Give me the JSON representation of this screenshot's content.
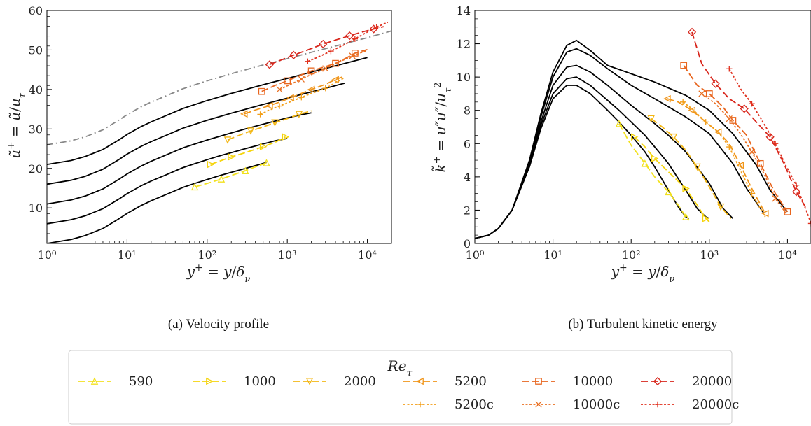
{
  "chart_data": [
    {
      "type": "line",
      "caption": "(a) Velocity profile",
      "xlabel": "y+ = y/δν",
      "ylabel": "ũ+ = ũ/uτ",
      "xscale": "log",
      "xlim": [
        1,
        20000
      ],
      "ylim": [
        1,
        60
      ],
      "xticks": [
        "10⁰",
        "10¹",
        "10²",
        "10³",
        "10⁴"
      ],
      "yticks": [
        "10",
        "20",
        "30",
        "40",
        "50",
        "60"
      ],
      "series": [
        {
          "name": "590 (reference)",
          "color": "#000000",
          "offset": 0,
          "x": [
            1,
            2,
            3,
            5,
            8,
            10,
            15,
            20,
            30,
            50,
            70,
            100,
            150,
            200,
            300,
            400,
            550
          ],
          "y": [
            1,
            2,
            3,
            4.8,
            7.3,
            8.6,
            10.6,
            11.8,
            13.3,
            15.2,
            16.2,
            17.2,
            18.3,
            19.0,
            20.0,
            20.7,
            21.5
          ]
        },
        {
          "name": "1000 (reference)",
          "color": "#000000",
          "offset": 5,
          "x": [
            1,
            2,
            3,
            5,
            8,
            10,
            15,
            20,
            30,
            50,
            70,
            100,
            150,
            200,
            300,
            500,
            700,
            1000
          ],
          "y": [
            6,
            7,
            8,
            9.8,
            12.3,
            13.6,
            15.6,
            16.8,
            18.3,
            20.2,
            21.2,
            22.2,
            23.3,
            24.0,
            25.0,
            26.2,
            27.0,
            27.6
          ]
        },
        {
          "name": "2000 (reference)",
          "color": "#000000",
          "offset": 10,
          "x": [
            1,
            2,
            3,
            5,
            8,
            10,
            15,
            20,
            30,
            50,
            100,
            200,
            300,
            500,
            1000,
            1500,
            2000
          ],
          "y": [
            11,
            12,
            13,
            14.8,
            17.3,
            18.6,
            20.6,
            21.8,
            23.3,
            25.2,
            27.2,
            29.0,
            30.0,
            31.2,
            32.8,
            33.6,
            34.1
          ]
        },
        {
          "name": "5200 (reference)",
          "color": "#000000",
          "offset": 15,
          "x": [
            1,
            2,
            3,
            5,
            8,
            10,
            15,
            20,
            30,
            50,
            100,
            200,
            500,
            1000,
            2000,
            3000,
            5200
          ],
          "y": [
            16,
            17,
            18,
            19.8,
            22.3,
            23.6,
            25.6,
            26.8,
            28.3,
            30.2,
            32.2,
            34.0,
            36.2,
            37.8,
            39.4,
            40.3,
            41.6
          ]
        },
        {
          "name": "10000 (reference)",
          "color": "#000000",
          "offset": 20,
          "x": [
            1,
            2,
            3,
            5,
            8,
            10,
            15,
            20,
            30,
            50,
            100,
            200,
            500,
            1000,
            2000,
            5000,
            10000
          ],
          "y": [
            21,
            22,
            23,
            24.8,
            27.3,
            28.6,
            30.6,
            31.8,
            33.3,
            35.2,
            37.2,
            39.0,
            41.2,
            42.8,
            44.4,
            46.5,
            48.1
          ]
        },
        {
          "name": "20000 (reference)",
          "color": "#888888",
          "offset": 25,
          "x": [
            1,
            2,
            3,
            5,
            8,
            10,
            15,
            20,
            30,
            50,
            100,
            200,
            500,
            1000,
            2000,
            5000,
            10000,
            20000
          ],
          "y": [
            26,
            27,
            28,
            29.8,
            32.3,
            33.6,
            35.6,
            36.8,
            38.3,
            40.2,
            42.2,
            44.0,
            46.2,
            47.8,
            49.4,
            51.5,
            53.1,
            54.8
          ]
        },
        {
          "name": "590",
          "color": "#f2e11e",
          "marker": "triangle-up",
          "x": [
            70,
            100,
            150,
            200,
            300,
            400,
            550
          ],
          "y": [
            15.3,
            16.2,
            17.3,
            18.2,
            19.4,
            20.4,
            21.4
          ]
        },
        {
          "name": "1000",
          "color": "#f5d40c",
          "marker": "triangle-right",
          "x": [
            110,
            150,
            200,
            300,
            500,
            700,
            950
          ],
          "y": [
            21.0,
            22.0,
            22.9,
            24.0,
            25.5,
            26.6,
            28.0
          ]
        },
        {
          "name": "2000",
          "color": "#f3b715",
          "marker": "triangle-down",
          "x": [
            180,
            250,
            350,
            500,
            700,
            1000,
            1400,
            2000
          ],
          "y": [
            27.2,
            28.4,
            29.5,
            30.5,
            31.6,
            32.6,
            33.7,
            34.6
          ]
        },
        {
          "name": "5200",
          "color": "#f0951a",
          "marker": "triangle-left",
          "x": [
            290,
            400,
            600,
            800,
            1100,
            1500,
            2000,
            3000,
            4000,
            5200
          ],
          "y": [
            33.8,
            34.8,
            35.9,
            36.8,
            37.9,
            39.0,
            40.0,
            41.3,
            42.5,
            43.4
          ]
        },
        {
          "name": "5200c",
          "color": "#f29f1a",
          "marker": "plus",
          "dashed": true,
          "x": [
            460,
            600,
            800,
            1100,
            1500,
            2000,
            3000,
            5200
          ],
          "y": [
            33.7,
            34.8,
            35.8,
            36.9,
            38.0,
            39.0,
            40.3,
            43.0
          ]
        },
        {
          "name": "10000",
          "color": "#e8651e",
          "marker": "square",
          "x": [
            480,
            700,
            1000,
            1500,
            2000,
            3000,
            4000,
            5500,
            7000,
            10000
          ],
          "y": [
            39.5,
            41.0,
            42.2,
            43.7,
            44.7,
            45.8,
            46.6,
            48.0,
            49.2,
            50.1
          ]
        },
        {
          "name": "10000c",
          "color": "#ea7022",
          "marker": "x",
          "dashed": true,
          "x": [
            800,
            1100,
            1500,
            2000,
            3000,
            4500,
            6500,
            10000
          ],
          "y": [
            40.0,
            41.3,
            42.6,
            43.8,
            45.3,
            47.0,
            48.5,
            49.9
          ]
        },
        {
          "name": "20000",
          "color": "#d8261c",
          "marker": "diamond",
          "x": [
            600,
            800,
            1200,
            1800,
            2800,
            4000,
            6000,
            8500,
            12000,
            16000
          ],
          "y": [
            46.3,
            47.3,
            48.7,
            50.0,
            51.5,
            52.5,
            53.6,
            54.5,
            55.3,
            55.9
          ]
        },
        {
          "name": "20000c",
          "color": "#e0301e",
          "marker": "plus",
          "dashed": true,
          "x": [
            1800,
            2500,
            3500,
            5000,
            7000,
            9500,
            13000,
            18000
          ],
          "y": [
            47.1,
            48.3,
            49.7,
            51.2,
            52.8,
            54.3,
            55.8,
            57.0
          ]
        }
      ]
    },
    {
      "type": "line",
      "caption": "(b) Turbulent kinetic energy",
      "xlabel": "y+ = y/δν",
      "ylabel": "k̃+ = u″u″/uτ²",
      "xscale": "log",
      "xlim": [
        1,
        20000
      ],
      "ylim": [
        0,
        14
      ],
      "xticks": [
        "10⁰",
        "10¹",
        "10²",
        "10³",
        "10⁴"
      ],
      "yticks": [
        "0",
        "2",
        "4",
        "6",
        "8",
        "10",
        "12",
        "14"
      ],
      "series": [
        {
          "name": "590 (reference)",
          "color": "#000000",
          "x": [
            1,
            1.5,
            2,
            3,
            5,
            7,
            10,
            15,
            20,
            30,
            50,
            70,
            100,
            150,
            200,
            300,
            400,
            500,
            550
          ],
          "y": [
            0.3,
            0.5,
            0.9,
            2.0,
            4.6,
            6.9,
            8.7,
            9.5,
            9.5,
            9.0,
            8.0,
            7.3,
            6.5,
            5.5,
            4.6,
            3.2,
            2.2,
            1.6,
            1.5
          ]
        },
        {
          "name": "1000 (reference)",
          "color": "#000000",
          "x": [
            1,
            1.5,
            2,
            3,
            5,
            7,
            10,
            15,
            20,
            30,
            50,
            70,
            100,
            150,
            200,
            300,
            500,
            700,
            900,
            1000
          ],
          "y": [
            0.3,
            0.5,
            0.9,
            2.0,
            4.7,
            7.1,
            9.0,
            9.9,
            10.0,
            9.5,
            8.6,
            8.0,
            7.3,
            6.5,
            5.8,
            4.8,
            3.2,
            2.1,
            1.6,
            1.5
          ]
        },
        {
          "name": "2000 (reference)",
          "color": "#000000",
          "x": [
            1,
            1.5,
            2,
            3,
            5,
            7,
            10,
            15,
            20,
            30,
            50,
            100,
            200,
            300,
            500,
            1000,
            1500,
            2000
          ],
          "y": [
            0.3,
            0.5,
            0.9,
            2.0,
            4.8,
            7.3,
            9.5,
            10.6,
            10.7,
            10.3,
            9.5,
            8.3,
            7.2,
            6.5,
            5.5,
            3.6,
            2.1,
            1.5
          ]
        },
        {
          "name": "5200 (reference)",
          "color": "#000000",
          "x": [
            1,
            1.5,
            2,
            3,
            5,
            7,
            10,
            15,
            20,
            30,
            50,
            100,
            200,
            500,
            1000,
            2000,
            3000,
            5000
          ],
          "y": [
            0.3,
            0.5,
            0.9,
            2.0,
            4.9,
            7.6,
            10.0,
            11.5,
            11.7,
            11.3,
            10.5,
            9.5,
            8.7,
            7.6,
            6.6,
            4.8,
            3.3,
            1.8
          ]
        },
        {
          "name": "10000 (reference)",
          "color": "#000000",
          "x": [
            1,
            1.5,
            2,
            3,
            5,
            7,
            10,
            15,
            20,
            30,
            50,
            100,
            200,
            500,
            1000,
            2000,
            4000,
            6000,
            10000
          ],
          "y": [
            0.3,
            0.5,
            0.9,
            2.0,
            5.0,
            7.8,
            10.3,
            11.9,
            12.2,
            11.6,
            10.7,
            10.2,
            9.7,
            8.9,
            8.0,
            6.6,
            4.7,
            3.2,
            1.9
          ]
        },
        {
          "name": "590",
          "color": "#f2e11e",
          "marker": "triangle-up",
          "x": [
            70,
            100,
            150,
            200,
            300,
            400,
            500,
            550
          ],
          "y": [
            7.2,
            5.9,
            4.8,
            4.0,
            3.1,
            2.3,
            1.6,
            1.4
          ]
        },
        {
          "name": "1000",
          "color": "#f5d40c",
          "marker": "triangle-right",
          "x": [
            110,
            150,
            200,
            300,
            500,
            700,
            900,
            1000
          ],
          "y": [
            6.4,
            5.8,
            5.1,
            4.3,
            3.3,
            2.3,
            1.5,
            1.3
          ]
        },
        {
          "name": "2000",
          "color": "#f3b715",
          "marker": "triangle-down",
          "x": [
            180,
            250,
            350,
            500,
            700,
            1000,
            1400,
            1900
          ],
          "y": [
            7.5,
            7.0,
            6.4,
            5.6,
            4.6,
            3.4,
            2.2,
            1.5
          ]
        },
        {
          "name": "5200",
          "color": "#f0951a",
          "marker": "triangle-left",
          "x": [
            290,
            400,
            600,
            900,
            1300,
            1800,
            2500,
            3500,
            5200
          ],
          "y": [
            8.7,
            8.5,
            8.0,
            7.3,
            6.7,
            6.0,
            4.7,
            3.3,
            1.8
          ]
        },
        {
          "name": "5200c",
          "color": "#f29f1a",
          "marker": "plus",
          "dashed": true,
          "x": [
            460,
            600,
            900,
            1300,
            1800,
            2500,
            3500,
            5200
          ],
          "y": [
            8.5,
            8.1,
            7.3,
            6.7,
            5.8,
            4.4,
            3.0,
            1.6
          ]
        },
        {
          "name": "10000",
          "color": "#e8651e",
          "marker": "square",
          "x": [
            470,
            700,
            1000,
            1500,
            2000,
            3000,
            4500,
            7000,
            10000
          ],
          "y": [
            10.7,
            9.5,
            9.0,
            8.2,
            7.4,
            6.5,
            4.8,
            3.0,
            1.9
          ]
        },
        {
          "name": "10000c",
          "color": "#ea7022",
          "marker": "x",
          "dashed": true,
          "x": [
            800,
            1200,
            1800,
            2500,
            3500,
            5000,
            7000,
            10000
          ],
          "y": [
            9.0,
            8.4,
            7.5,
            6.6,
            5.5,
            4.2,
            2.7,
            1.7
          ]
        },
        {
          "name": "20000",
          "color": "#d8261c",
          "marker": "diamond",
          "x": [
            600,
            800,
            1200,
            1800,
            2800,
            4000,
            6000,
            9000,
            13000,
            17000
          ],
          "y": [
            12.7,
            10.8,
            9.6,
            8.7,
            8.1,
            7.3,
            6.4,
            4.8,
            3.1,
            2.2
          ]
        },
        {
          "name": "20000c",
          "color": "#e0301e",
          "marker": "plus",
          "dashed": true,
          "x": [
            1800,
            2500,
            3500,
            5000,
            7000,
            9500,
            13000,
            18000,
            20000
          ],
          "y": [
            10.5,
            9.3,
            8.4,
            7.2,
            6.0,
            4.7,
            3.5,
            1.8,
            1.2
          ]
        }
      ]
    }
  ],
  "legend": {
    "title": "Re_τ",
    "entries": [
      {
        "label": "590",
        "color": "#f2e11e",
        "marker": "triangle-up",
        "dashed": false
      },
      {
        "label": "1000",
        "color": "#f5d40c",
        "marker": "triangle-right",
        "dashed": false
      },
      {
        "label": "2000",
        "color": "#f3b715",
        "marker": "triangle-down",
        "dashed": false
      },
      {
        "label": "5200",
        "color": "#f0951a",
        "marker": "triangle-left",
        "dashed": false
      },
      {
        "label": "10000",
        "color": "#e8651e",
        "marker": "square",
        "dashed": false
      },
      {
        "label": "20000",
        "color": "#d8261c",
        "marker": "diamond",
        "dashed": false
      },
      {
        "label": "5200c",
        "color": "#f29f1a",
        "marker": "plus",
        "dashed": true
      },
      {
        "label": "10000c",
        "color": "#ea7022",
        "marker": "x",
        "dashed": true
      },
      {
        "label": "20000c",
        "color": "#e0301e",
        "marker": "plus",
        "dashed": true
      }
    ]
  }
}
